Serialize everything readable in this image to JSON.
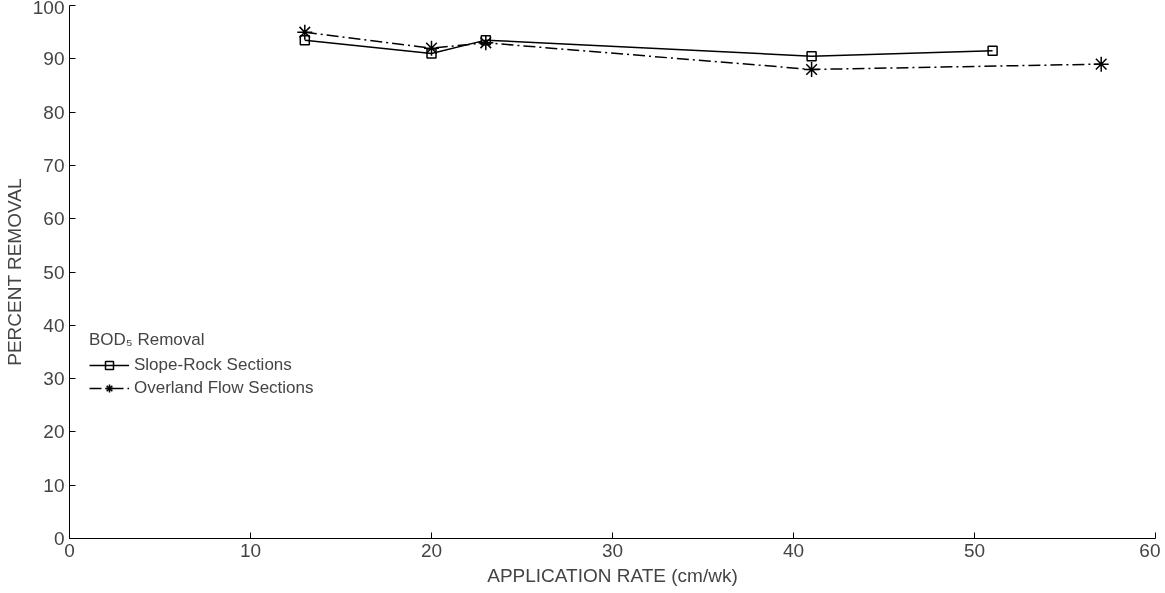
{
  "chart_data": {
    "type": "line",
    "xlabel": "APPLICATION RATE (cm/wk)",
    "ylabel": "PERCENT REMOVAL",
    "legend_title": "BOD₅ Removal",
    "legend": "left",
    "grid": false,
    "xlim": [
      0,
      60
    ],
    "xticks": [
      0,
      10,
      20,
      30,
      40,
      50,
      60
    ],
    "ylim": [
      0,
      100
    ],
    "yticks": [
      0,
      10,
      20,
      30,
      40,
      50,
      60,
      70,
      80,
      90,
      100
    ],
    "series": [
      {
        "name": "Slope-Rock Sections",
        "color": "#000000",
        "marker": "square",
        "line_style": "solid",
        "x": [
          13,
          20,
          23,
          41,
          51
        ],
        "values": [
          93.5,
          91,
          93.5,
          90.5,
          91.5
        ]
      },
      {
        "name": "Overland Flow Sections",
        "color": "#000000",
        "marker": "cross",
        "line_style": "dashdot",
        "x": [
          13,
          20,
          23,
          41,
          57
        ],
        "values": [
          95,
          92,
          93,
          88,
          89
        ]
      }
    ]
  }
}
